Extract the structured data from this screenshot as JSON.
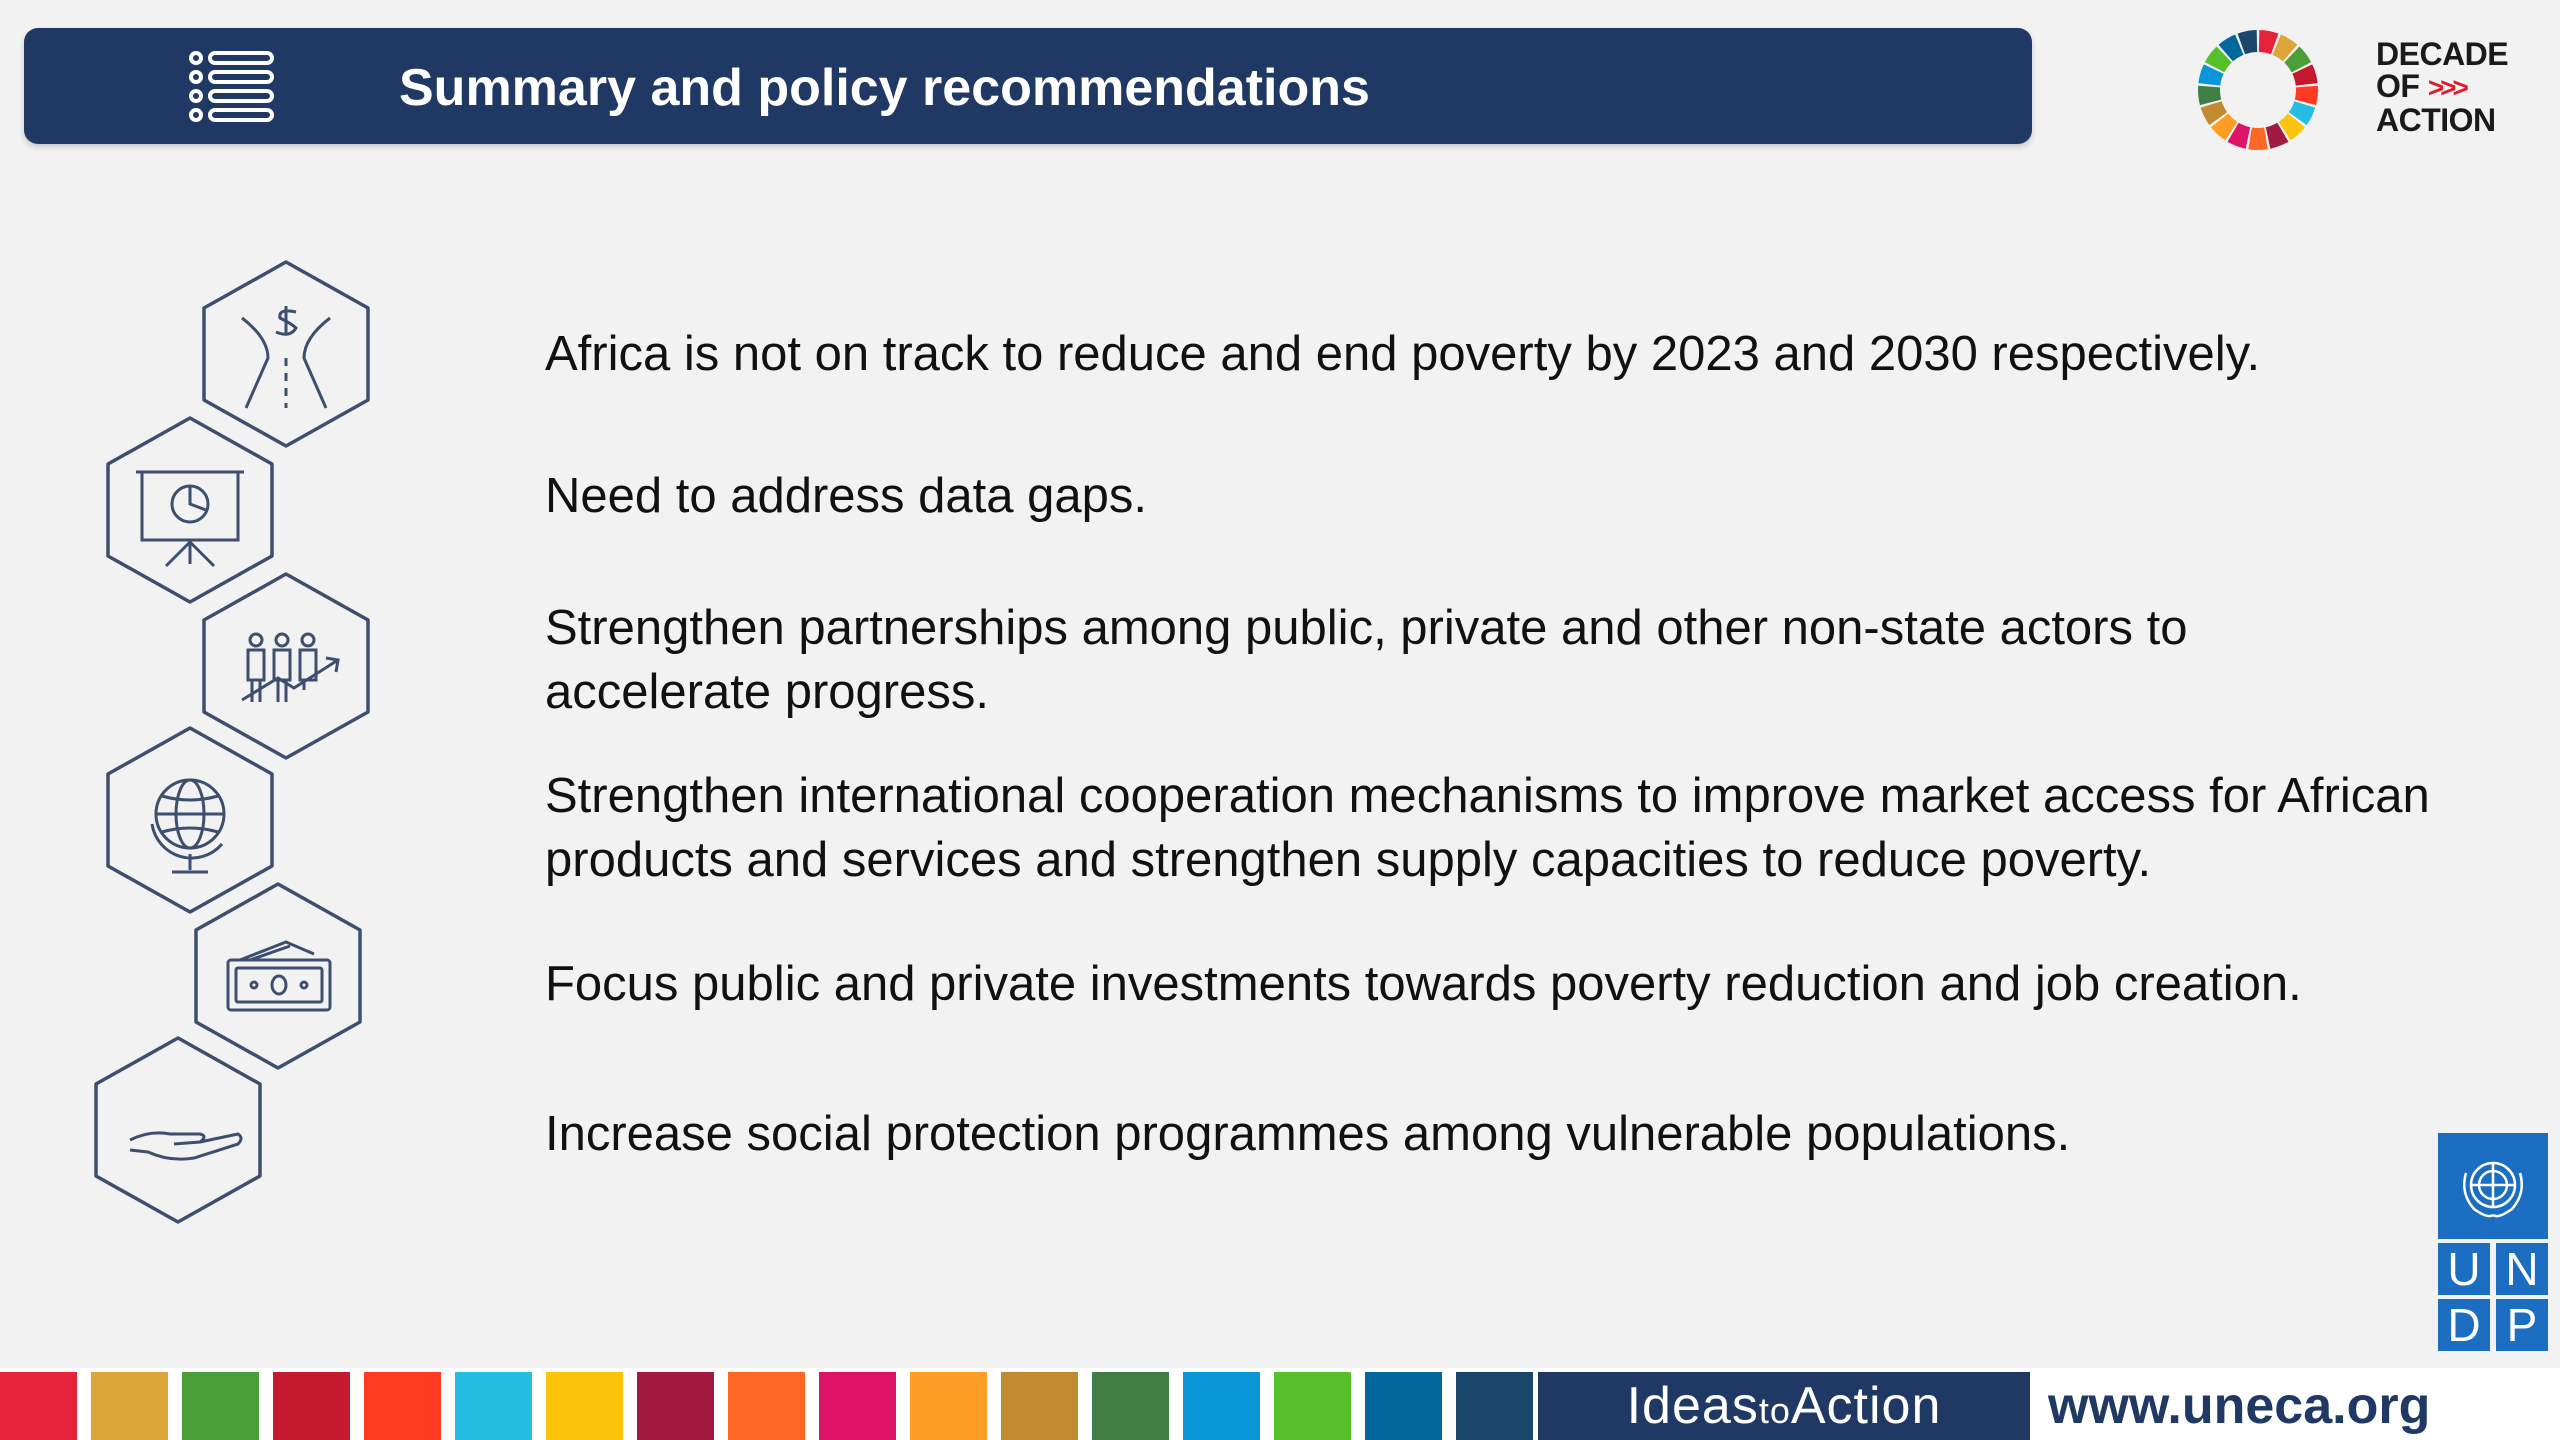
{
  "header": {
    "title": "Summary and policy recommendations",
    "menu_icon": "list-icon"
  },
  "decade_logo": {
    "line1": "DECADE",
    "line2": "OF",
    "arrows": ">>>",
    "line3": "ACTION"
  },
  "recommendations": [
    {
      "text": "Africa is not on track to reduce and end poverty by 2023 and 2030 respectively.",
      "icon": "poverty-road-icon"
    },
    {
      "text": "Need to address data gaps.",
      "icon": "presentation-chart-icon"
    },
    {
      "text": "Strengthen partnerships among public, private and other non-state actors to accelerate progress.",
      "icon": "partnership-growth-icon"
    },
    {
      "text": "Strengthen international cooperation mechanisms to improve market access for African products and services and strengthen supply capacities to reduce poverty.",
      "icon": "globe-icon"
    },
    {
      "text": "Focus public and private investments towards poverty reduction and job creation.",
      "icon": "money-icon"
    },
    {
      "text": "Increase social protection programmes among vulnerable populations.",
      "icon": "open-hand-icon"
    }
  ],
  "undp_logo": {
    "letters": [
      "U",
      "N",
      "D",
      "P"
    ]
  },
  "footer": {
    "sdg_colors": [
      "#e5243b",
      "#dda63a",
      "#4c9f38",
      "#c5192d",
      "#ff3a21",
      "#26bde2",
      "#fcc30b",
      "#a21942",
      "#fd6925",
      "#dd1367",
      "#fd9d24",
      "#bf8b2e",
      "#3f7e44",
      "#0a97d9",
      "#56c02b",
      "#00689d",
      "#19486a"
    ],
    "ideas_part1": "Ideas",
    "ideas_part2": "to",
    "ideas_part3": "Action",
    "website": "www.uneca.org"
  },
  "colors": {
    "navy": "#1f3864",
    "background": "#f2f2f2",
    "undp_blue": "#1b6ec2",
    "icon_stroke": "#3d4f6e"
  }
}
